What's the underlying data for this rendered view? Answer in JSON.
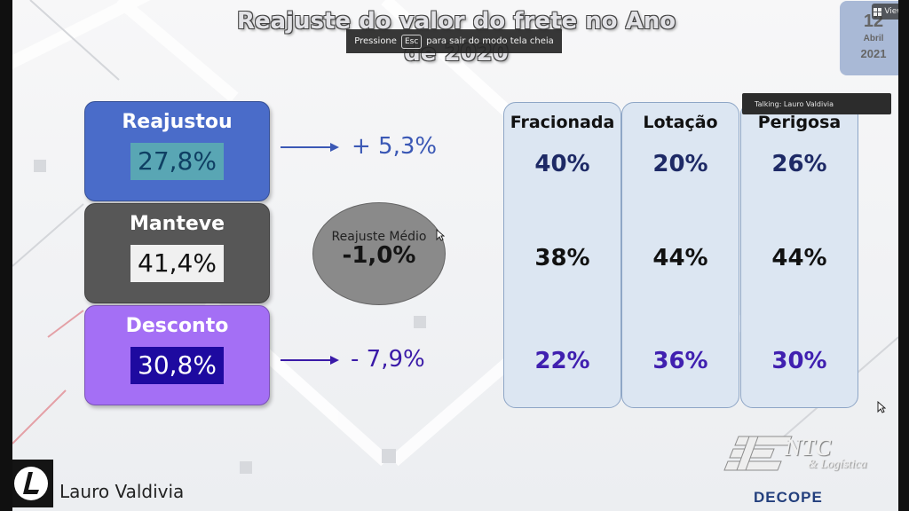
{
  "slide": {
    "title": "Reajuste do valor do frete no Ano de 2020",
    "categories": [
      {
        "label": "Reajustou",
        "value": "27,8%",
        "delta": "+ 5,3%"
      },
      {
        "label": "Manteve",
        "value": "41,4%"
      },
      {
        "label": "Desconto",
        "value": "30,8%",
        "delta": "- 7,9%"
      }
    ],
    "average": {
      "label": "Reajuste Médio",
      "value": "-1,0%"
    },
    "columns": [
      {
        "header": "Fracionada",
        "values": [
          "40%",
          "38%",
          "22%"
        ]
      },
      {
        "header": "Lotação",
        "values": [
          "20%",
          "44%",
          "36%"
        ]
      },
      {
        "header": "Perigosa",
        "values": [
          "26%",
          "44%",
          "30%"
        ]
      }
    ],
    "date": {
      "day": "12",
      "month": "Abril",
      "year": "2021"
    },
    "footer": {
      "org_logo_text": "NTC",
      "org_logo_subtext": "& Logística",
      "department": "DECOPE"
    }
  },
  "overlay": {
    "fullscreen_notice": {
      "before": "Pressione",
      "key": "Esc",
      "after": "para sair do modo tela cheia"
    },
    "view_button": "View",
    "talking_indicator": "Talking: Lauro Valdivia",
    "presenter_name": "Lauro Valdivia"
  },
  "colors": {
    "reajustou": "#4a6cc9",
    "manteve": "#575757",
    "desconto": "#a46ff5",
    "columns_bg": "#dce6f2"
  },
  "icons": {
    "arrow_up_row": "right-arrow-icon",
    "arrow_down_row": "right-arrow-icon",
    "view": "grid-icon",
    "cursor": "mouse-pointer-icon"
  }
}
